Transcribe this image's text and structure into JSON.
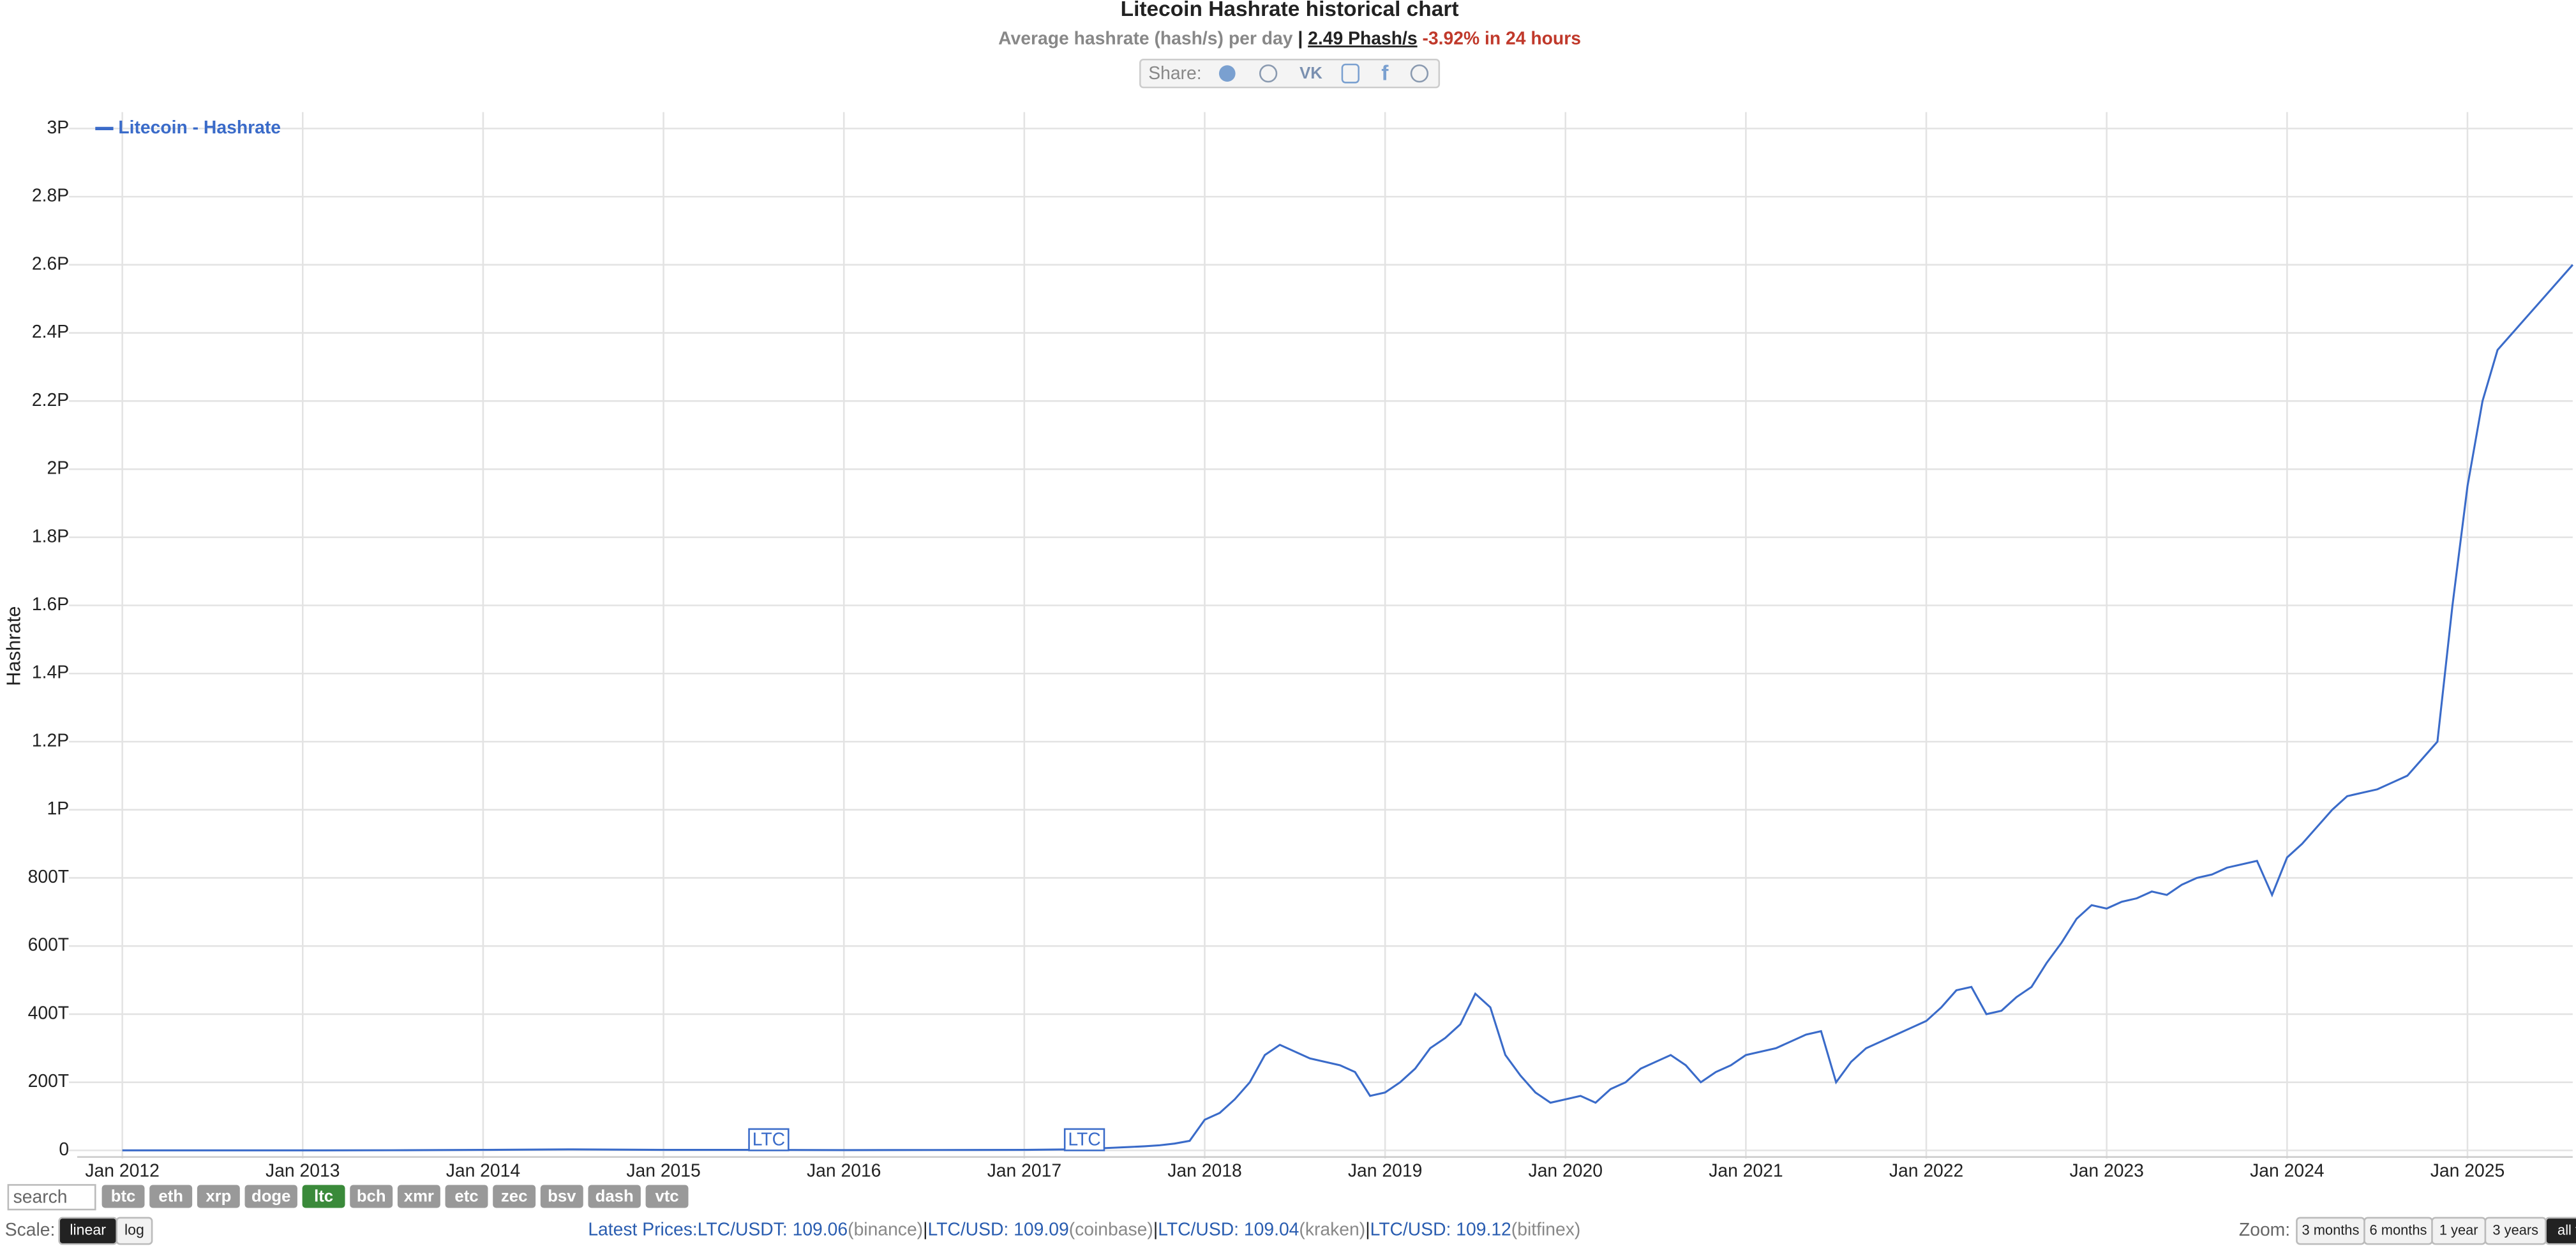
{
  "chart_data": {
    "type": "line",
    "title": "Litecoin Hashrate historical chart",
    "subtitle": {
      "text": "Average hashrate (hash/s) per day",
      "separator": "|",
      "current": "2.49 Phash/s",
      "change": "-3.92% in 24 hours"
    },
    "y_label": "Hashrate",
    "legend": "top-left",
    "grid": true,
    "xlim": [
      "2011-10",
      "2025-08"
    ],
    "xticks": [
      {
        "value": "2012-01",
        "label": "Jan 2012"
      },
      {
        "value": "2013-01",
        "label": "Jan 2013"
      },
      {
        "value": "2014-01",
        "label": "Jan 2014"
      },
      {
        "value": "2015-01",
        "label": "Jan 2015"
      },
      {
        "value": "2016-01",
        "label": "Jan 2016"
      },
      {
        "value": "2017-01",
        "label": "Jan 2017"
      },
      {
        "value": "2018-01",
        "label": "Jan 2018"
      },
      {
        "value": "2019-01",
        "label": "Jan 2019"
      },
      {
        "value": "2020-01",
        "label": "Jan 2020"
      },
      {
        "value": "2021-01",
        "label": "Jan 2021"
      },
      {
        "value": "2022-01",
        "label": "Jan 2022"
      },
      {
        "value": "2023-01",
        "label": "Jan 2023"
      },
      {
        "value": "2024-01",
        "label": "Jan 2024"
      },
      {
        "value": "2025-01",
        "label": "Jan 2025"
      }
    ],
    "ylim": [
      0,
      3000000000000000.0
    ],
    "yticks": [
      0,
      {
        "value": 200000000000000.0,
        "label": "200T"
      },
      {
        "value": 400000000000000.0,
        "label": "400T"
      },
      {
        "value": 600000000000000.0,
        "label": "600T"
      },
      {
        "value": 800000000000000.0,
        "label": "800T"
      },
      {
        "value": 1000000000000000.0,
        "label": "1P"
      },
      {
        "value": 1200000000000000.0,
        "label": "1.2P"
      },
      {
        "value": 1400000000000000.0,
        "label": "1.4P"
      },
      {
        "value": 1600000000000000.0,
        "label": "1.6P"
      },
      {
        "value": 1800000000000000.0,
        "label": "1.8P"
      },
      {
        "value": 2000000000000000.0,
        "label": "2P"
      },
      {
        "value": 2200000000000000.0,
        "label": "2.2P"
      },
      {
        "value": 2400000000000000.0,
        "label": "2.4P"
      },
      {
        "value": 2600000000000000.0,
        "label": "2.6P"
      },
      {
        "value": 2800000000000000.0,
        "label": "2.8P"
      },
      {
        "value": 3000000000000000.0,
        "label": "3P"
      }
    ],
    "x": [
      "2012-01",
      "2012-07",
      "2013-01",
      "2013-07",
      "2014-01",
      "2014-07",
      "2015-01",
      "2015-07",
      "2016-01",
      "2016-07",
      "2017-01",
      "2017-02",
      "2017-03",
      "2017-04",
      "2017-05",
      "2017-06",
      "2017-07",
      "2017-08",
      "2017-09",
      "2017-10",
      "2017-11",
      "2017-12",
      "2018-01",
      "2018-02",
      "2018-03",
      "2018-04",
      "2018-05",
      "2018-06",
      "2018-07",
      "2018-08",
      "2018-09",
      "2018-10",
      "2018-11",
      "2018-12",
      "2019-01",
      "2019-02",
      "2019-03",
      "2019-04",
      "2019-05",
      "2019-06",
      "2019-07",
      "2019-08",
      "2019-09",
      "2019-10",
      "2019-11",
      "2019-12",
      "2020-01",
      "2020-02",
      "2020-03",
      "2020-04",
      "2020-05",
      "2020-06",
      "2020-07",
      "2020-08",
      "2020-09",
      "2020-10",
      "2020-11",
      "2020-12",
      "2021-01",
      "2021-02",
      "2021-03",
      "2021-04",
      "2021-05",
      "2021-06",
      "2021-07",
      "2021-08",
      "2021-09",
      "2021-10",
      "2021-11",
      "2021-12",
      "2022-01",
      "2022-02",
      "2022-03",
      "2022-04",
      "2022-05",
      "2022-06",
      "2022-07",
      "2022-08",
      "2022-09",
      "2022-10",
      "2022-11",
      "2022-12",
      "2023-01",
      "2023-02",
      "2023-03",
      "2023-04",
      "2023-05",
      "2023-06",
      "2023-07",
      "2023-08",
      "2023-09",
      "2023-10",
      "2023-11",
      "2023-12",
      "2024-01",
      "2024-02",
      "2024-03",
      "2024-04",
      "2024-05",
      "2024-06",
      "2024-07",
      "2024-08",
      "2024-09",
      "2024-10",
      "2024-11",
      "2024-12",
      "2025-01",
      "2025-02",
      "2025-03",
      "2025-04",
      "2025-05",
      "2025-06",
      "2025-07",
      "2025-08"
    ],
    "series": [
      {
        "name": "Litecoin - Hashrate",
        "color": "#3a6bc9",
        "values": [
          100000000000.0,
          150000000000.0,
          100000000000.0,
          500000000000.0,
          1500000000000.0,
          3000000000000.0,
          1500000000000.0,
          1500000000000.0,
          800000000000.0,
          1200000000000.0,
          1500000000000.0,
          2000000000000.0,
          2500000000000.0,
          3000000000000.0,
          4000000000000.0,
          6000000000000.0,
          8000000000000.0,
          10000000000000.0,
          12000000000000.0,
          15000000000000.0,
          20000000000000.0,
          28000000000000.0,
          90000000000000.0,
          110000000000000.0,
          150000000000000.0,
          200000000000000.0,
          280000000000000.0,
          310000000000000.0,
          290000000000000.0,
          270000000000000.0,
          260000000000000.0,
          250000000000000.0,
          230000000000000.0,
          160000000000000.0,
          170000000000000.0,
          200000000000000.0,
          240000000000000.0,
          300000000000000.0,
          330000000000000.0,
          370000000000000.0,
          460000000000000.0,
          420000000000000.0,
          280000000000000.0,
          220000000000000.0,
          170000000000000.0,
          140000000000000.0,
          150000000000000.0,
          160000000000000.0,
          140000000000000.0,
          180000000000000.0,
          200000000000000.0,
          240000000000000.0,
          260000000000000.0,
          280000000000000.0,
          250000000000000.0,
          200000000000000.0,
          230000000000000.0,
          250000000000000.0,
          280000000000000.0,
          290000000000000.0,
          300000000000000.0,
          320000000000000.0,
          340000000000000.0,
          350000000000000.0,
          200000000000000.0,
          260000000000000.0,
          300000000000000.0,
          320000000000000.0,
          340000000000000.0,
          360000000000000.0,
          380000000000000.0,
          420000000000000.0,
          470000000000000.0,
          480000000000000.0,
          400000000000000.0,
          410000000000000.0,
          450000000000000.0,
          480000000000000.0,
          550000000000000.0,
          610000000000000.0,
          680000000000000.0,
          720000000000000.0,
          710000000000000.0,
          730000000000000.0,
          740000000000000.0,
          760000000000000.0,
          750000000000000.0,
          780000000000000.0,
          800000000000000.0,
          810000000000000.0,
          830000000000000.0,
          840000000000000.0,
          850000000000000.0,
          750000000000000.0,
          860000000000000.0,
          900000000000000.0,
          950000000000000.0,
          1000000000000000.0,
          1040000000000000.0,
          1050000000000000.0,
          1060000000000000.0,
          1080000000000000.0,
          1100000000000000.0,
          1150000000000000.0,
          1200000000000000.0,
          1600000000000000.0,
          1950000000000000.0,
          2200000000000000.0,
          2350000000000000.0,
          2400000000000000.0,
          2450000000000000.0,
          2500000000000000.0,
          2550000000000000.0,
          2600000000000000.0
        ]
      }
    ],
    "annotations": [
      {
        "x": "2015-08",
        "label": "LTC"
      },
      {
        "x": "2017-05",
        "label": "LTC"
      }
    ]
  },
  "controls": {
    "share": "Share:",
    "search": "search",
    "coins": [
      "btc",
      "eth",
      "xrp",
      "doge",
      "ltc",
      "bch",
      "xmr",
      "etc",
      "zec",
      "bsv",
      "dash",
      "vtc"
    ],
    "active_coin": "ltc",
    "scale_label": "Scale:",
    "scales": [
      "linear",
      "log"
    ],
    "active_scale": "linear",
    "prices_label": "Latest Prices:",
    "separator": "|",
    "prices": [
      {
        "pair": "LTC/USDT: 109.06",
        "source": "(binance)"
      },
      {
        "pair": "LTC/USD: 109.09",
        "source": "(coinbase)"
      },
      {
        "pair": "LTC/USD: 109.04",
        "source": "(kraken)"
      },
      {
        "pair": "LTC/USD: 109.12",
        "source": "(bitfinex)"
      }
    ],
    "zoom_label": "Zoom:",
    "zooms": [
      "3 months",
      "6 months",
      "1 year",
      "3 years",
      "all time"
    ],
    "active_zoom": "all time"
  }
}
